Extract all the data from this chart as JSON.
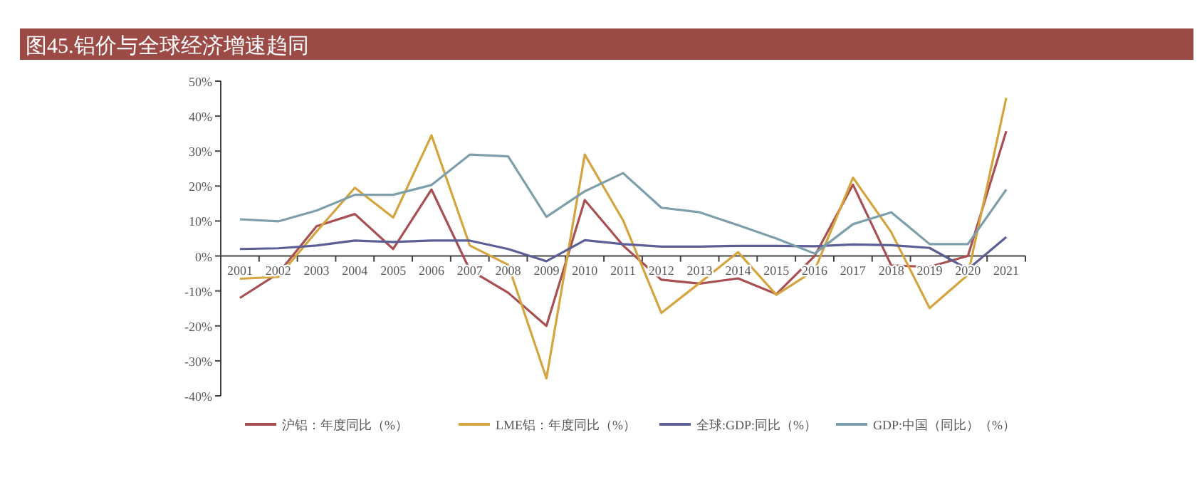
{
  "chart_data": {
    "type": "line",
    "title": "图45.铝价与全球经济增速趋同",
    "categories": [
      "2001",
      "2002",
      "2003",
      "2004",
      "2005",
      "2006",
      "2007",
      "2008",
      "2009",
      "2010",
      "2011",
      "2012",
      "2013",
      "2014",
      "2015",
      "2016",
      "2017",
      "2018",
      "2019",
      "2020",
      "2021"
    ],
    "series": [
      {
        "name": "沪铝：年度同比（%）",
        "color": "#a84f52",
        "values": [
          -12,
          -5,
          8.5,
          12,
          2,
          19,
          -4,
          -10.5,
          -20,
          16,
          3,
          -6.8,
          -7.9,
          -6.4,
          -10.9,
          0,
          20.4,
          -2.7,
          -3.1,
          0,
          35.7
        ]
      },
      {
        "name": "LME铝：年度同比（%）",
        "color": "#d4a43e",
        "values": [
          -6.5,
          -6,
          7,
          19.5,
          11,
          34.5,
          3,
          -2.5,
          -35,
          29,
          10.2,
          -16.3,
          -7.7,
          1.1,
          -11.1,
          -4.1,
          22.4,
          6.8,
          -14.9,
          -5.4,
          45.2
        ]
      },
      {
        "name": "全球:GDP:同比（%）",
        "color": "#5c5e96",
        "values": [
          2,
          2.2,
          3,
          4.4,
          4,
          4.4,
          4.4,
          2,
          -1.5,
          4.5,
          3.4,
          2.7,
          2.7,
          2.9,
          2.9,
          2.8,
          3.3,
          3.1,
          2.3,
          -3.8,
          5.4
        ]
      },
      {
        "name": "GDP:中国（同比）（%）",
        "color": "#7d9fac",
        "values": [
          10.5,
          9.9,
          13,
          17.5,
          17.5,
          20.3,
          29,
          28.5,
          11.2,
          18.5,
          23.7,
          13.8,
          12.5,
          8.8,
          5,
          0.7,
          9.1,
          12.5,
          3.4,
          3.4,
          19
        ]
      }
    ],
    "ylim": [
      -40,
      50
    ],
    "yticks": [
      {
        "value": -40,
        "label": "-40%"
      },
      {
        "value": -30,
        "label": "-30%"
      },
      {
        "value": -20,
        "label": "-20%"
      },
      {
        "value": -10,
        "label": "-10%"
      },
      {
        "value": 0,
        "label": "0%"
      },
      {
        "value": 10,
        "label": "10%"
      },
      {
        "value": 20,
        "label": "20%"
      },
      {
        "value": 30,
        "label": "30%"
      },
      {
        "value": 40,
        "label": "40%"
      },
      {
        "value": 50,
        "label": "50%"
      }
    ],
    "grid": false,
    "legend": "bottom",
    "marker": "none",
    "line_style": "solid"
  }
}
